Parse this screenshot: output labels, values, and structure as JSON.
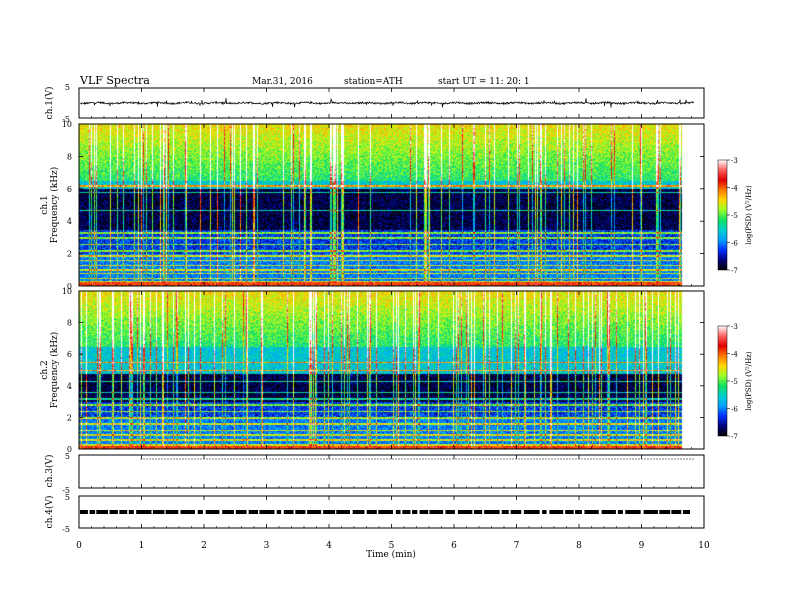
{
  "header": {
    "title": "VLF  Spectra",
    "date": "Mar.31, 2016",
    "station": "station=ATH",
    "start": "start  UT  =    11: 20: 1"
  },
  "colorbar": {
    "label": "log(PSD) (V²/Hz)",
    "ticks": [
      "-3",
      "-4",
      "-5",
      "-6",
      "-7"
    ],
    "colors": [
      "#ffffff",
      "#ff6060",
      "#e00000",
      "#ff7a00",
      "#ffd800",
      "#9aff2a",
      "#10e060",
      "#00d0d0",
      "#00a0ff",
      "#0030ff",
      "#00007a",
      "#000000"
    ]
  },
  "chart_data": [
    {
      "type": "line",
      "panel": "ch1",
      "ylabel": "ch.1(V)",
      "ylim": [
        -5,
        5
      ],
      "yticks": [
        "5",
        "-5"
      ],
      "xlim": [
        0,
        10
      ],
      "baseline": 0,
      "trace_range": [
        -1,
        1
      ],
      "description_values": "noisy waveform centred near 0 V, extent about ±1 V"
    },
    {
      "type": "heatmap",
      "panel": "ch1-spectrogram",
      "ylabel_top": "ch.1",
      "ylabel": "Frequency  (kHz)",
      "ylim": [
        0,
        10
      ],
      "yticks": [
        "0",
        "2",
        "4",
        "6",
        "8",
        "10"
      ],
      "xlim": [
        0,
        9.8
      ],
      "bands_khz": [
        0.3,
        0.5,
        0.8,
        1.0,
        1.3,
        1.6,
        1.9,
        2.2,
        2.6,
        3.0,
        3.3,
        4.7,
        5.8,
        6.2
      ],
      "dark_region_khz": [
        3.5,
        6.0
      ],
      "zlim": [
        -7,
        -3
      ]
    },
    {
      "type": "heatmap",
      "panel": "ch2-spectrogram",
      "ylabel_top": "ch.2",
      "ylabel": "Frequency  (kHz)",
      "ylim": [
        0,
        10
      ],
      "yticks": [
        "0",
        "2",
        "4",
        "6",
        "8",
        "10"
      ],
      "xlim": [
        0,
        9.8
      ],
      "bands_khz": [
        0.3,
        0.6,
        0.9,
        1.2,
        1.6,
        2.0,
        2.4,
        2.8,
        3.2,
        3.6,
        4.3,
        5.0,
        5.5
      ],
      "dark_region_khz": [
        3.0,
        4.8
      ],
      "zlim": [
        -7,
        -3
      ]
    },
    {
      "type": "line",
      "panel": "ch3",
      "ylabel": "ch.3(V)",
      "ylim": [
        -5,
        5
      ],
      "yticks": [
        "5",
        "-5"
      ],
      "xlim": [
        0,
        10
      ],
      "baseline": 5
    },
    {
      "type": "line",
      "panel": "ch4",
      "ylabel": "ch.4(V)",
      "ylim": [
        -5,
        5
      ],
      "yticks": [
        "5",
        "-5"
      ],
      "xlim": [
        0,
        10
      ],
      "baseline": 0
    }
  ],
  "xaxis": {
    "label": "Time  (min)",
    "ticks": [
      "0",
      "1",
      "2",
      "3",
      "4",
      "5",
      "6",
      "7",
      "8",
      "9",
      "10"
    ],
    "range": [
      0,
      10
    ]
  }
}
